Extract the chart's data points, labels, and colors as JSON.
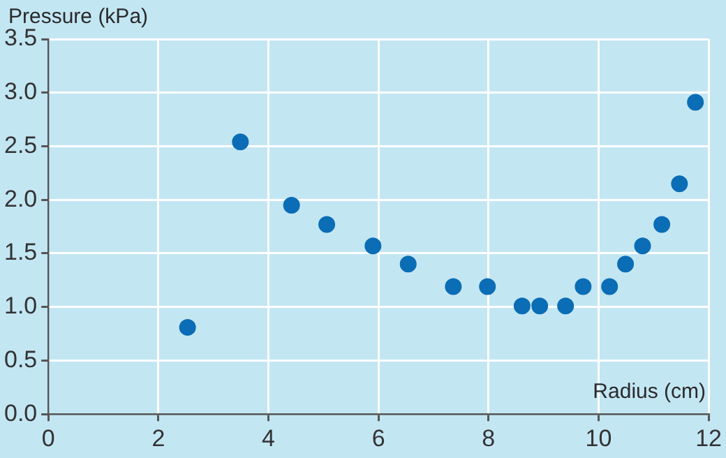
{
  "chart_data": {
    "type": "scatter",
    "xlabel": "Radius (cm)",
    "ylabel": "Pressure (kPa)",
    "x": [
      2.53,
      3.49,
      4.42,
      5.06,
      5.9,
      6.54,
      7.36,
      7.98,
      8.61,
      8.93,
      9.4,
      9.72,
      10.2,
      10.49,
      10.8,
      11.15,
      11.47,
      11.76
    ],
    "values": [
      0.81,
      2.54,
      1.95,
      1.77,
      1.57,
      1.4,
      1.19,
      1.19,
      1.01,
      1.01,
      1.01,
      1.19,
      1.19,
      1.4,
      1.57,
      1.77,
      2.15,
      2.91
    ],
    "color": "#0b6db5",
    "marker": "circle",
    "grid": true,
    "legend": false,
    "xlim": [
      0,
      12
    ],
    "xticks": [
      0,
      2,
      4,
      6,
      8,
      10,
      12
    ],
    "ylim": [
      0,
      3.5
    ],
    "yticks": [
      {
        "value": 0,
        "label": "0.0"
      },
      {
        "value": 0.5,
        "label": "0.5"
      },
      {
        "value": 1,
        "label": "1.0"
      },
      {
        "value": 1.5,
        "label": "1.5"
      },
      {
        "value": 2,
        "label": "2.0"
      },
      {
        "value": 2.5,
        "label": "2.5"
      },
      {
        "value": 3,
        "label": "3.0"
      },
      {
        "value": 3.5,
        "label": "3.5"
      }
    ]
  }
}
